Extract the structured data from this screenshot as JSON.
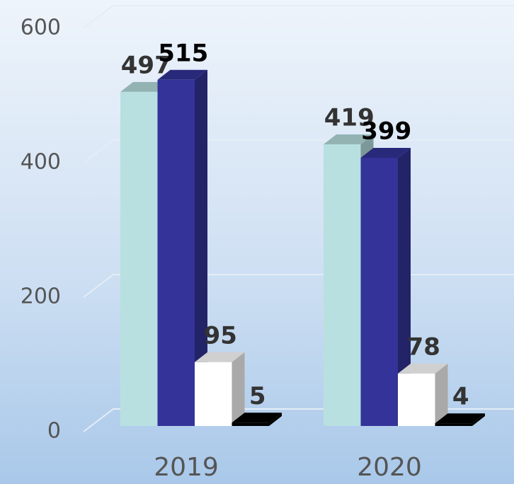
{
  "chart_data": {
    "type": "bar3d",
    "categories": [
      "2019",
      "2020"
    ],
    "series": [
      {
        "color": "#b8e0e0",
        "values": [
          497,
          419
        ]
      },
      {
        "color": "#333399",
        "values": [
          515,
          399
        ]
      },
      {
        "color": "#ffffff",
        "values": [
          95,
          78
        ]
      },
      {
        "color": "#000000",
        "values": [
          5,
          4
        ]
      }
    ],
    "ylim": [
      0,
      600
    ],
    "yticks": [
      0,
      200,
      400,
      600
    ],
    "grid": true
  }
}
